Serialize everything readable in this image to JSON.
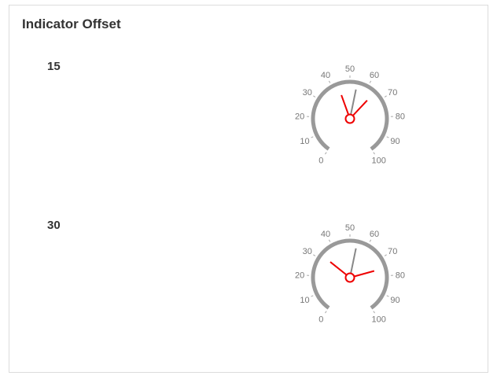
{
  "page": {
    "title": "Indicator Offset"
  },
  "gauges": [
    {
      "label": "15",
      "min": 0,
      "max": 100,
      "ticks": [
        "0",
        "10",
        "20",
        "30",
        "40",
        "50",
        "60",
        "70",
        "80",
        "90",
        "100"
      ],
      "value": 54,
      "indicator_offset": 15
    },
    {
      "label": "30",
      "min": 0,
      "max": 100,
      "ticks": [
        "0",
        "10",
        "20",
        "30",
        "40",
        "50",
        "60",
        "70",
        "80",
        "90",
        "100"
      ],
      "value": 54,
      "indicator_offset": 30
    }
  ],
  "colors": {
    "scale": "#999999",
    "needle": "#888888",
    "indicator": "#ee0000",
    "tick_text": "#777777"
  }
}
